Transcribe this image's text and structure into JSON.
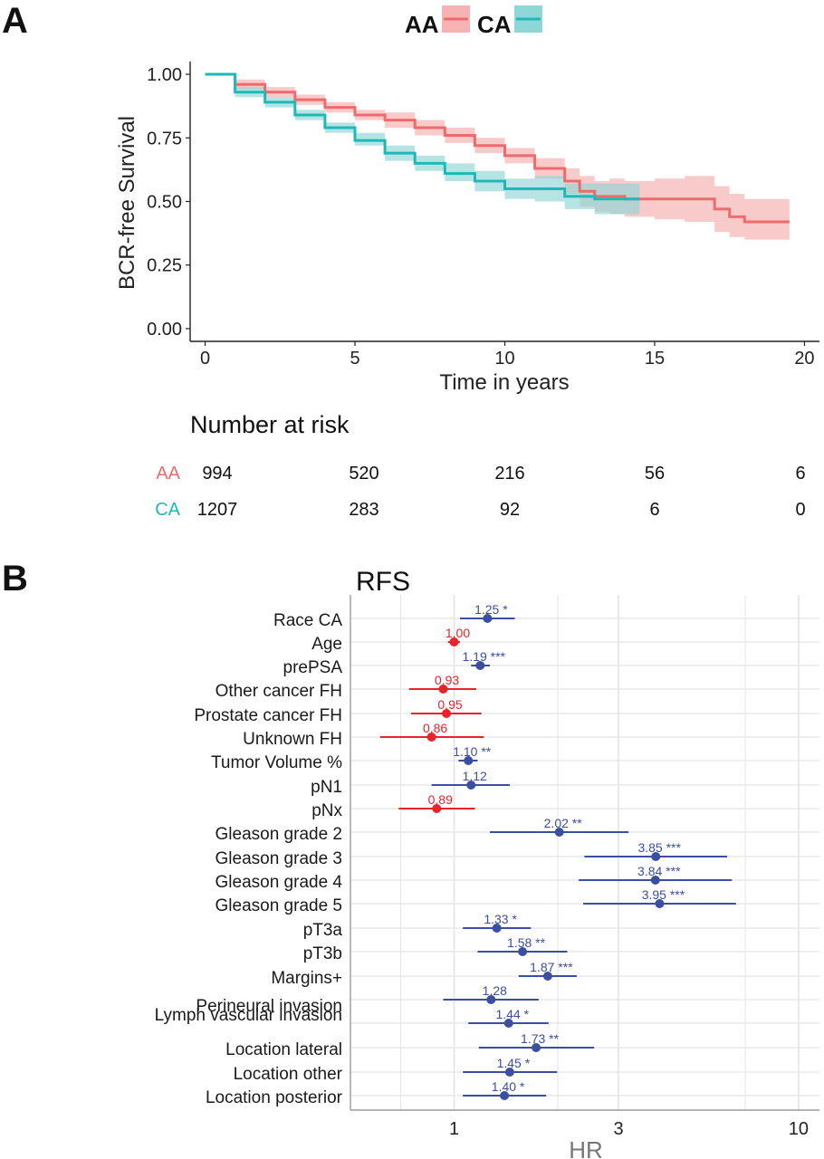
{
  "panels": {
    "a_label": "A",
    "b_label": "B"
  },
  "colors": {
    "aa": "#ee6b6b",
    "aa_band": "#f7b3b3",
    "ca": "#1fb8b8",
    "ca_band": "#8fd6d6",
    "forest_sig": "#3a4fa0",
    "forest_ns": "#e8232b",
    "grid": "#e4e4e4"
  },
  "chart_data": [
    {
      "type": "line",
      "subtype": "kaplan-meier",
      "xlabel": "Time in years",
      "ylabel": "BCR-free Survival",
      "xlim": [
        -0.5,
        20.5
      ],
      "ylim": [
        -0.05,
        1.05
      ],
      "xticks": [
        0,
        5,
        10,
        15,
        20
      ],
      "yticks": [
        "0.00",
        "0.25",
        "0.50",
        "0.75",
        "1.00"
      ],
      "grid": false,
      "legend_position": "top",
      "series": [
        {
          "name": "AA",
          "color": "#ee6b6b",
          "x": [
            0,
            1,
            2,
            3,
            4,
            5,
            6,
            7,
            8,
            9,
            10,
            11,
            12,
            12.5,
            13,
            13.5,
            14,
            15,
            16,
            17,
            17.5,
            18,
            19.5
          ],
          "y": [
            1.0,
            0.96,
            0.93,
            0.9,
            0.87,
            0.84,
            0.82,
            0.79,
            0.76,
            0.72,
            0.68,
            0.63,
            0.58,
            0.54,
            0.52,
            0.52,
            0.51,
            0.51,
            0.51,
            0.47,
            0.44,
            0.42,
            0.42
          ],
          "lower": [
            1.0,
            0.94,
            0.91,
            0.88,
            0.85,
            0.82,
            0.79,
            0.76,
            0.73,
            0.69,
            0.65,
            0.59,
            0.53,
            0.48,
            0.46,
            0.45,
            0.44,
            0.43,
            0.42,
            0.38,
            0.36,
            0.35,
            0.35
          ],
          "upper": [
            1.0,
            0.98,
            0.95,
            0.92,
            0.89,
            0.86,
            0.85,
            0.82,
            0.79,
            0.75,
            0.71,
            0.67,
            0.63,
            0.6,
            0.58,
            0.59,
            0.58,
            0.59,
            0.6,
            0.56,
            0.53,
            0.51,
            0.51
          ]
        },
        {
          "name": "CA",
          "color": "#1fb8b8",
          "x": [
            0,
            1,
            2,
            3,
            4,
            5,
            6,
            7,
            8,
            9,
            10,
            11,
            12,
            13,
            14,
            14.5
          ],
          "y": [
            1.0,
            0.93,
            0.89,
            0.84,
            0.79,
            0.74,
            0.69,
            0.65,
            0.61,
            0.58,
            0.55,
            0.55,
            0.52,
            0.51,
            0.51,
            0.51
          ],
          "lower": [
            1.0,
            0.91,
            0.87,
            0.82,
            0.77,
            0.72,
            0.66,
            0.62,
            0.58,
            0.54,
            0.51,
            0.5,
            0.47,
            0.45,
            0.45,
            0.45
          ],
          "upper": [
            1.0,
            0.95,
            0.91,
            0.86,
            0.81,
            0.77,
            0.72,
            0.68,
            0.65,
            0.62,
            0.59,
            0.6,
            0.57,
            0.57,
            0.57,
            0.57
          ]
        }
      ]
    },
    {
      "type": "table",
      "title": "Number at risk",
      "columns_at_time": [
        0,
        5,
        10,
        15,
        20
      ],
      "rows": [
        {
          "name": "AA",
          "color": "#ee6b6b",
          "values": [
            "994",
            "520",
            "216",
            "56",
            "6"
          ]
        },
        {
          "name": "CA",
          "color": "#1fb8b8",
          "values": [
            "1207",
            "283",
            "92",
            "6",
            "0"
          ]
        }
      ]
    },
    {
      "type": "forest",
      "title": "RFS",
      "xlabel": "HR",
      "xscale": "log",
      "xlim": [
        0.5,
        11.5
      ],
      "xticks": [
        "1",
        "3",
        "10"
      ],
      "grid": true,
      "rows": [
        {
          "label": "Race CA",
          "hr": 1.25,
          "lo": 1.04,
          "hi": 1.5,
          "text": "1.25 *",
          "sig": true
        },
        {
          "label": "Age",
          "hr": 1.0,
          "lo": 0.96,
          "hi": 1.04,
          "text": "1.00",
          "sig": false
        },
        {
          "label": "prePSA",
          "hr": 1.19,
          "lo": 1.12,
          "hi": 1.27,
          "text": "1.19 ***",
          "sig": true
        },
        {
          "label": "Other cancer FH",
          "hr": 0.93,
          "lo": 0.74,
          "hi": 1.16,
          "text": "0.93",
          "sig": false
        },
        {
          "label": "Prostate cancer FH",
          "hr": 0.95,
          "lo": 0.75,
          "hi": 1.2,
          "text": "0.95",
          "sig": false
        },
        {
          "label": "Unknown FH",
          "hr": 0.86,
          "lo": 0.61,
          "hi": 1.22,
          "text": "0.86",
          "sig": false
        },
        {
          "label": "Tumor Volume %",
          "hr": 1.1,
          "lo": 1.03,
          "hi": 1.17,
          "text": "1.10 **",
          "sig": true
        },
        {
          "label": "pN1",
          "hr": 1.12,
          "lo": 0.86,
          "hi": 1.45,
          "text": "1.12",
          "sig": true
        },
        {
          "label": "pNx",
          "hr": 0.89,
          "lo": 0.69,
          "hi": 1.15,
          "text": "0.89",
          "sig": false
        },
        {
          "label": "Gleason grade 2",
          "hr": 2.02,
          "lo": 1.27,
          "hi": 3.21,
          "text": "2.02 **",
          "sig": true
        },
        {
          "label": "Gleason grade 3",
          "hr": 3.85,
          "lo": 2.39,
          "hi": 6.2,
          "text": "3.85 ***",
          "sig": true
        },
        {
          "label": "Gleason grade 4",
          "hr": 3.84,
          "lo": 2.3,
          "hi": 6.4,
          "text": "3.84 ***",
          "sig": true
        },
        {
          "label": "Gleason grade 5",
          "hr": 3.95,
          "lo": 2.37,
          "hi": 6.58,
          "text": "3.95 ***",
          "sig": true
        },
        {
          "label": "pT3a",
          "hr": 1.33,
          "lo": 1.06,
          "hi": 1.67,
          "text": "1.33 *",
          "sig": true
        },
        {
          "label": "pT3b",
          "hr": 1.58,
          "lo": 1.17,
          "hi": 2.13,
          "text": "1.58 **",
          "sig": true
        },
        {
          "label": "Margins+",
          "hr": 1.87,
          "lo": 1.54,
          "hi": 2.27,
          "text": "1.87 ***",
          "sig": true
        },
        {
          "label": "Perineural invasion",
          "hr": 1.28,
          "lo": 0.93,
          "hi": 1.76,
          "text": "1.28",
          "sig": true
        },
        {
          "label": "Lymph vascular invasion",
          "hr": 1.44,
          "lo": 1.1,
          "hi": 1.88,
          "text": "1.44 *",
          "sig": true
        },
        {
          "label": "Location lateral",
          "hr": 1.73,
          "lo": 1.18,
          "hi": 2.55,
          "text": "1.73 **",
          "sig": true
        },
        {
          "label": "Location other",
          "hr": 1.45,
          "lo": 1.06,
          "hi": 1.99,
          "text": "1.45 *",
          "sig": true
        },
        {
          "label": "Location posterior",
          "hr": 1.4,
          "lo": 1.06,
          "hi": 1.85,
          "text": "1.40 *",
          "sig": true
        }
      ]
    }
  ]
}
